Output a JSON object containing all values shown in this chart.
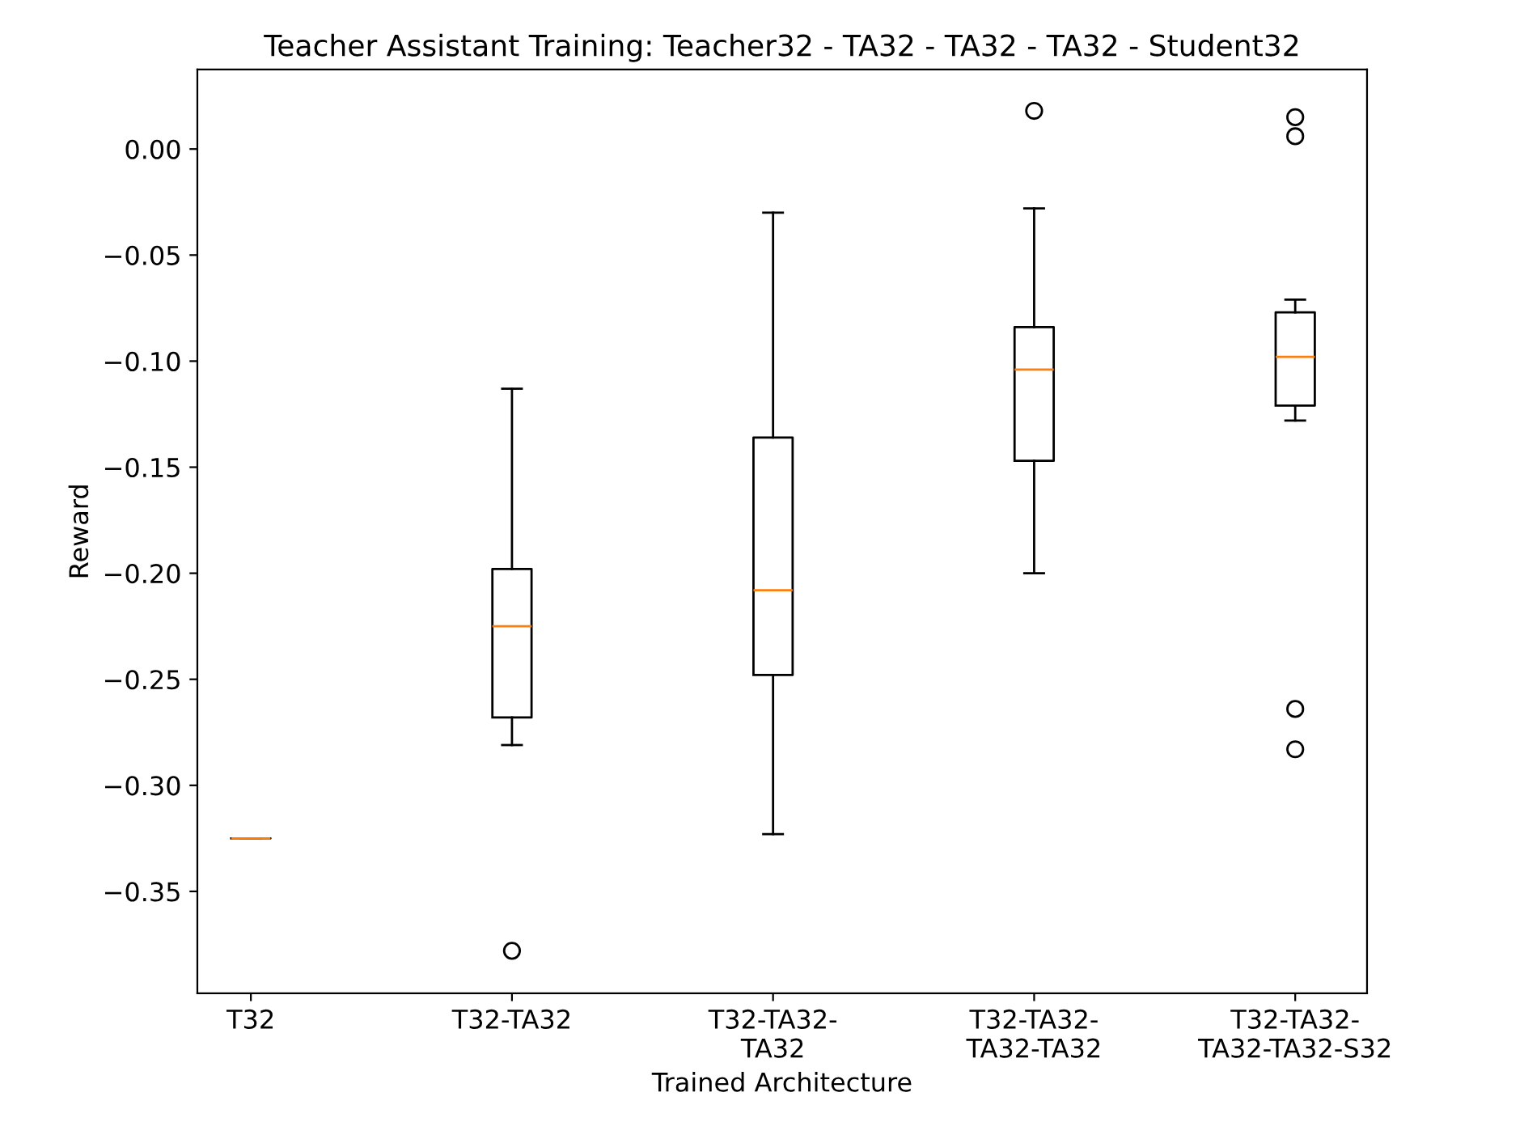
{
  "chart_data": {
    "type": "box",
    "title": "Teacher Assistant Training: Teacher32 - TA32 - TA32 - TA32 - Student32",
    "xlabel": "Trained Architecture",
    "ylabel": "Reward",
    "categories": [
      "T32",
      "T32-TA32",
      "T32-TA32-\nTA32",
      "T32-TA32-\nTA32-TA32",
      "T32-TA32-\nTA32-TA32-S32"
    ],
    "boxes": [
      {
        "low": -0.325,
        "q1": -0.325,
        "median": -0.325,
        "q3": -0.325,
        "high": -0.325
      },
      {
        "low": -0.281,
        "q1": -0.268,
        "median": -0.225,
        "q3": -0.198,
        "high": -0.113,
        "outliers": [
          -0.378
        ]
      },
      {
        "low": -0.323,
        "q1": -0.248,
        "median": -0.208,
        "q3": -0.136,
        "high": -0.03
      },
      {
        "low": -0.2,
        "q1": -0.147,
        "median": -0.104,
        "q3": -0.084,
        "high": -0.028,
        "outliers": [
          0.018
        ]
      },
      {
        "low": -0.128,
        "q1": -0.121,
        "median": -0.098,
        "q3": -0.077,
        "high": -0.071,
        "outliers": [
          0.015,
          0.006,
          -0.264,
          -0.283
        ]
      }
    ],
    "ylim": [
      -0.398,
      0.0375
    ],
    "yticks": [
      {
        "value": 0.0,
        "label": "0.00"
      },
      {
        "value": -0.05,
        "label": "−0.05"
      },
      {
        "value": -0.1,
        "label": "−0.10"
      },
      {
        "value": -0.15,
        "label": "−0.15"
      },
      {
        "value": -0.2,
        "label": "−0.20"
      },
      {
        "value": -0.25,
        "label": "−0.25"
      },
      {
        "value": -0.3,
        "label": "−0.30"
      },
      {
        "value": -0.35,
        "label": "−0.35"
      }
    ],
    "grid": false
  }
}
